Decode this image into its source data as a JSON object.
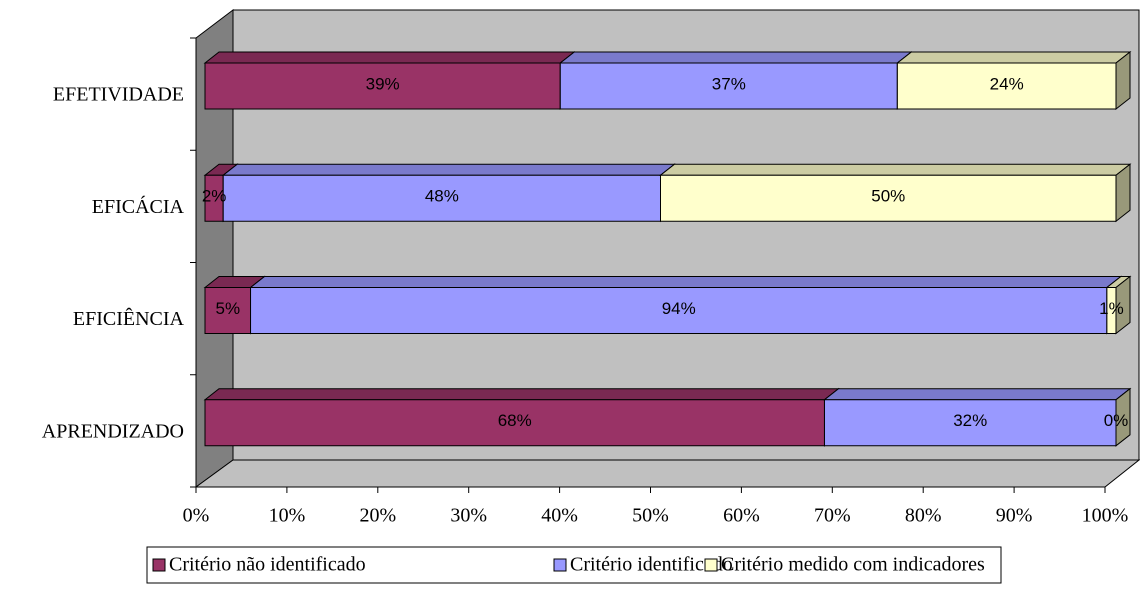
{
  "chart_data": {
    "type": "bar",
    "orientation": "horizontal",
    "stacked": true,
    "three_d": true,
    "categories": [
      "EFETIVIDADE",
      "EFICÁCIA",
      "EFICIÊNCIA",
      "APRENDIZADO"
    ],
    "series": [
      {
        "name": "Critério não identificado",
        "color": "#993366",
        "values": [
          39,
          2,
          5,
          68
        ],
        "value_labels": [
          "39%",
          "2%",
          "5%",
          "68%"
        ]
      },
      {
        "name": "Critério identificado",
        "color": "#9999ff",
        "values": [
          37,
          48,
          94,
          32
        ],
        "value_labels": [
          "37%",
          "48%",
          "94%",
          "32%"
        ]
      },
      {
        "name": "Critério medido com indicadores",
        "color": "#ffffcc",
        "values": [
          24,
          50,
          1,
          0
        ],
        "value_labels": [
          "24%",
          "50%",
          "1%",
          "0%"
        ]
      }
    ],
    "xlim": [
      0,
      100
    ],
    "xticks": [
      {
        "value": 0,
        "label": "0%"
      },
      {
        "value": 10,
        "label": "10%"
      },
      {
        "value": 20,
        "label": "20%"
      },
      {
        "value": 30,
        "label": "30%"
      },
      {
        "value": 40,
        "label": "40%"
      },
      {
        "value": 50,
        "label": "50%"
      },
      {
        "value": 60,
        "label": "60%"
      },
      {
        "value": 70,
        "label": "70%"
      },
      {
        "value": 80,
        "label": "80%"
      },
      {
        "value": 90,
        "label": "90%"
      },
      {
        "value": 100,
        "label": "100%"
      }
    ],
    "legend": "bottom"
  }
}
